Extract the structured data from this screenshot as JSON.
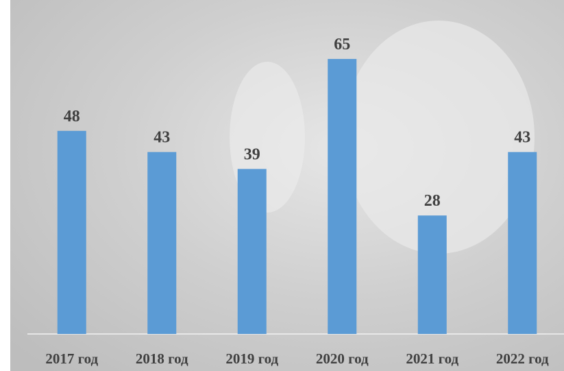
{
  "chart_data": {
    "type": "bar",
    "categories": [
      "2017 год",
      "2018 год",
      "2019 год",
      "2020 год",
      "2021 год",
      "2022 год"
    ],
    "values": [
      48,
      43,
      39,
      65,
      28,
      43
    ],
    "color": "#5b9bd5"
  }
}
